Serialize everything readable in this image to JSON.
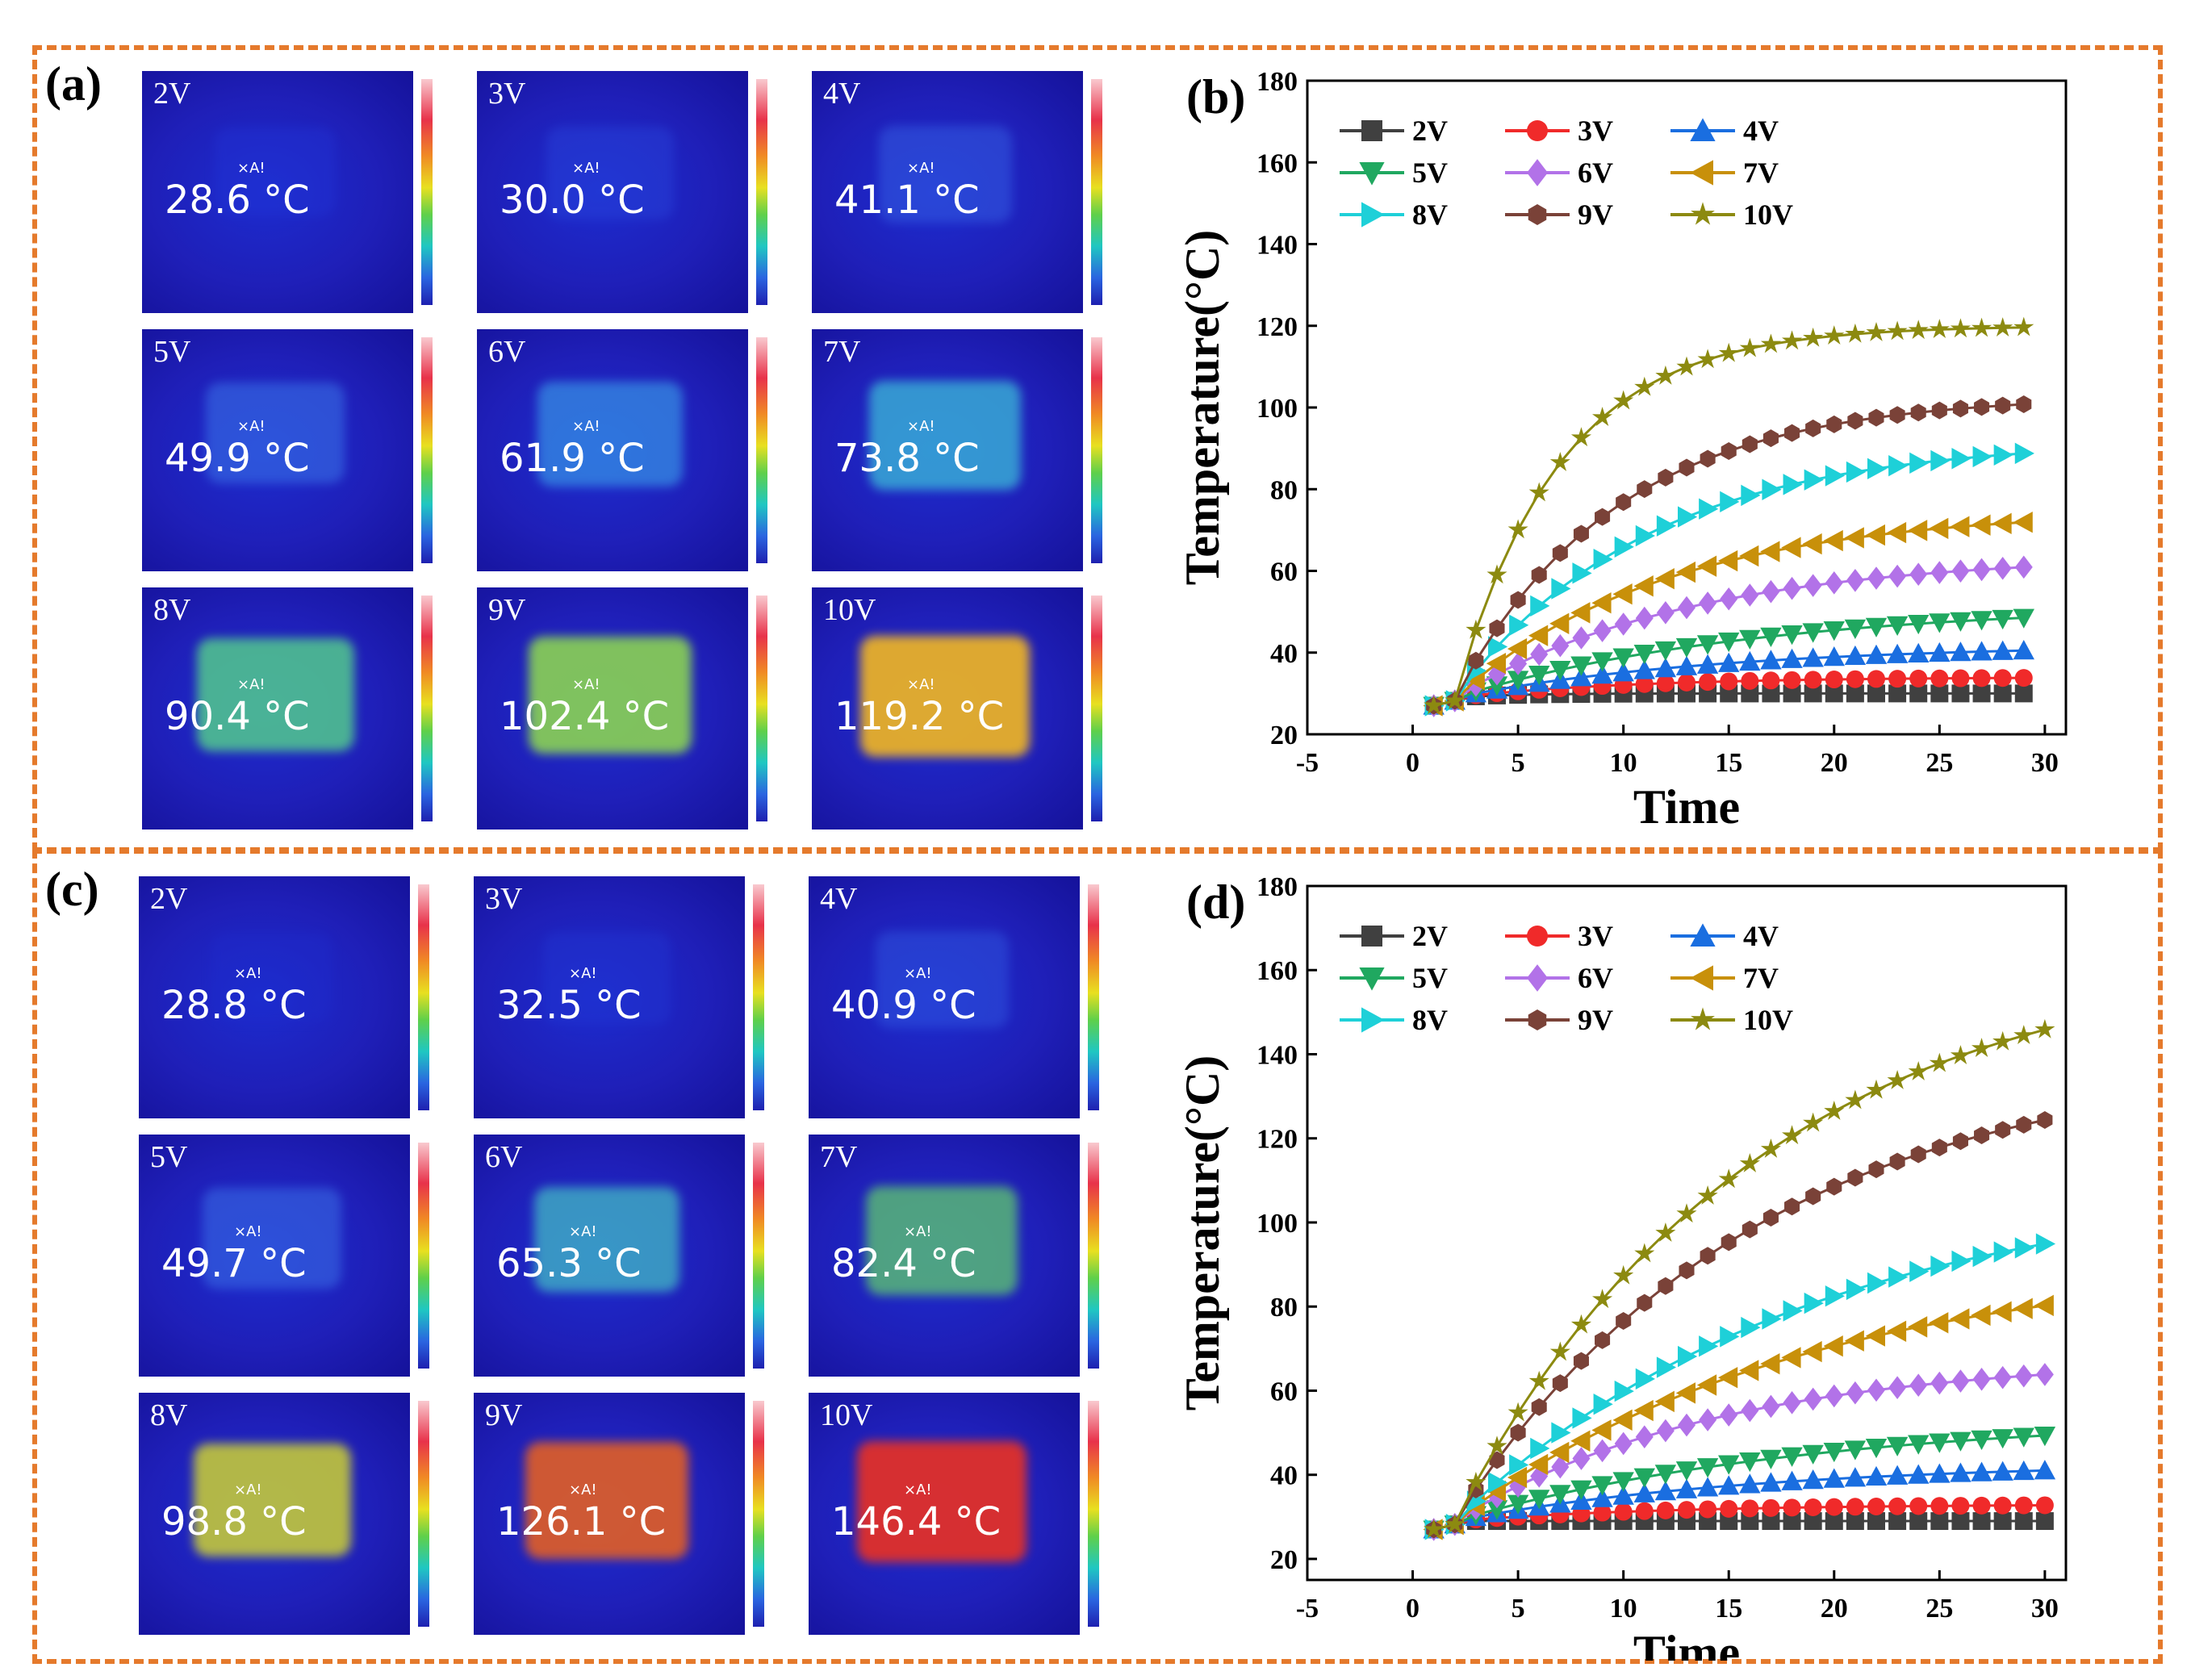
{
  "panel_labels": {
    "a": "(a)",
    "b": "(b)",
    "c": "(c)",
    "d": "(d)"
  },
  "thermal_top": [
    {
      "voltage": "2V",
      "temp": "28.6 °C",
      "marker": "×A!"
    },
    {
      "voltage": "3V",
      "temp": "30.0 °C",
      "marker": "×A!"
    },
    {
      "voltage": "4V",
      "temp": "41.1 °C",
      "marker": "×A!"
    },
    {
      "voltage": "5V",
      "temp": "49.9 °C",
      "marker": "×A!"
    },
    {
      "voltage": "6V",
      "temp": "61.9 °C",
      "marker": "×A!"
    },
    {
      "voltage": "7V",
      "temp": "73.8 °C",
      "marker": "×A!"
    },
    {
      "voltage": "8V",
      "temp": "90.4 °C",
      "marker": "×A!"
    },
    {
      "voltage": "9V",
      "temp": "102.4 °C",
      "marker": "×A!"
    },
    {
      "voltage": "10V",
      "temp": "119.2 °C",
      "marker": "×A!"
    }
  ],
  "thermal_bottom": [
    {
      "voltage": "2V",
      "temp": "28.8 °C",
      "marker": "×A!"
    },
    {
      "voltage": "3V",
      "temp": "32.5 °C",
      "marker": "×A!"
    },
    {
      "voltage": "4V",
      "temp": "40.9 °C",
      "marker": "×A!"
    },
    {
      "voltage": "5V",
      "temp": "49.7 °C",
      "marker": "×A!"
    },
    {
      "voltage": "6V",
      "temp": "65.3 °C",
      "marker": "×A!"
    },
    {
      "voltage": "7V",
      "temp": "82.4 °C",
      "marker": "×A!"
    },
    {
      "voltage": "8V",
      "temp": "98.8 °C",
      "marker": "×A!"
    },
    {
      "voltage": "9V",
      "temp": "126.1 °C",
      "marker": "×A!"
    },
    {
      "voltage": "10V",
      "temp": "146.4 °C",
      "marker": "×A!"
    }
  ],
  "thermal_colors": {
    "hot_top": [
      "#2336d8",
      "#2a46dc",
      "#3660e2",
      "#3a72e6",
      "#3a9ce8",
      "#3dc0d8",
      "#56d48a",
      "#8ed850",
      "#e8b02a"
    ],
    "hot_bottom": [
      "#1e2ccc",
      "#2236d2",
      "#3056de",
      "#3a6ce4",
      "#48d0c4",
      "#62d06a",
      "#d8dc2a",
      "#e86020",
      "#e0302a"
    ]
  },
  "series_colors": {
    "2V": "#404040",
    "3V": "#f02a2a",
    "4V": "#1a6ee0",
    "5V": "#20a860",
    "6V": "#b272e8",
    "7V": "#c8900a",
    "8V": "#1ed0d8",
    "9V": "#7a4238",
    "10V": "#8c8a10"
  },
  "chart_data": [
    {
      "type": "line",
      "title": "",
      "xlabel": "Time",
      "ylabel": "Temperature(°C)",
      "xlim": [
        -5,
        31
      ],
      "ylim": [
        20,
        180
      ],
      "xticks": [
        "-5",
        "0",
        "5",
        "10",
        "15",
        "20",
        "25",
        "30"
      ],
      "yticks": [
        "20",
        "40",
        "60",
        "80",
        "100",
        "120",
        "140",
        "160",
        "180"
      ],
      "legend": [
        "2V",
        "3V",
        "4V",
        "5V",
        "6V",
        "7V",
        "8V",
        "9V",
        "10V"
      ],
      "legend_position": "top-left",
      "x_start": 1,
      "x_end": 29,
      "series": [
        {
          "name": "2V",
          "marker": "square",
          "steady": 30,
          "rate": 0.35
        },
        {
          "name": "3V",
          "marker": "circle",
          "steady": 34,
          "rate": 0.12
        },
        {
          "name": "4V",
          "marker": "triangle-up",
          "steady": 42,
          "rate": 0.08
        },
        {
          "name": "5V",
          "marker": "triangle-down",
          "steady": 52,
          "rate": 0.07
        },
        {
          "name": "6V",
          "marker": "diamond",
          "steady": 64,
          "rate": 0.09
        },
        {
          "name": "7V",
          "marker": "triangle-left",
          "steady": 75,
          "rate": 0.1
        },
        {
          "name": "8V",
          "marker": "triangle-right",
          "steady": 92,
          "rate": 0.11
        },
        {
          "name": "9V",
          "marker": "hexagon",
          "steady": 103,
          "rate": 0.13
        },
        {
          "name": "10V",
          "marker": "star",
          "steady": 120,
          "rate": 0.2
        }
      ]
    },
    {
      "type": "line",
      "title": "",
      "xlabel": "Time",
      "ylabel": "Temperature(°C)",
      "xlim": [
        -5,
        31
      ],
      "ylim": [
        15,
        180
      ],
      "xticks": [
        "-5",
        "0",
        "5",
        "10",
        "15",
        "20",
        "25",
        "30"
      ],
      "yticks": [
        "20",
        "40",
        "60",
        "80",
        "100",
        "120",
        "140",
        "160",
        "180"
      ],
      "legend": [
        "2V",
        "3V",
        "4V",
        "5V",
        "6V",
        "7V",
        "8V",
        "9V",
        "10V"
      ],
      "legend_position": "top-left",
      "x_start": 1,
      "x_end": 30,
      "series": [
        {
          "name": "2V",
          "marker": "square",
          "steady": 29,
          "rate": 0.4
        },
        {
          "name": "3V",
          "marker": "circle",
          "steady": 33,
          "rate": 0.1
        },
        {
          "name": "4V",
          "marker": "triangle-up",
          "steady": 43,
          "rate": 0.07
        },
        {
          "name": "5V",
          "marker": "triangle-down",
          "steady": 54,
          "rate": 0.06
        },
        {
          "name": "6V",
          "marker": "diamond",
          "steady": 68,
          "rate": 0.08
        },
        {
          "name": "7V",
          "marker": "triangle-left",
          "steady": 92,
          "rate": 0.06
        },
        {
          "name": "8V",
          "marker": "triangle-right",
          "steady": 110,
          "rate": 0.06
        },
        {
          "name": "9V",
          "marker": "hexagon",
          "steady": 140,
          "rate": 0.07
        },
        {
          "name": "10V",
          "marker": "star",
          "steady": 165,
          "rate": 0.07
        }
      ]
    }
  ]
}
